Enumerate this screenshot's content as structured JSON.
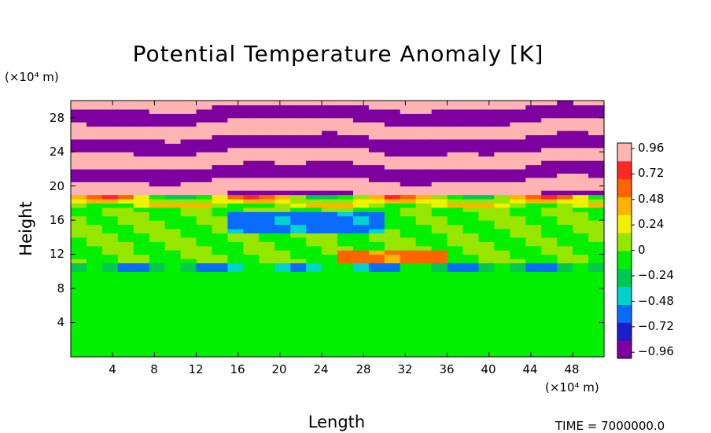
{
  "chart_data": {
    "type": "heatmap",
    "title": "Potential Temperature Anomaly [K]",
    "xlabel": "Length",
    "ylabel": "Height",
    "x_unit": "(×10⁴ m)",
    "y_unit": "(×10⁴ m)",
    "xlim": [
      0,
      51
    ],
    "ylim": [
      0,
      30
    ],
    "x_ticks": [
      "4",
      "8",
      "12",
      "16",
      "20",
      "24",
      "28",
      "32",
      "36",
      "40",
      "44",
      "48"
    ],
    "y_ticks": [
      "4",
      "8",
      "12",
      "16",
      "20",
      "24",
      "28"
    ],
    "colorbar": {
      "range": [
        -1.0,
        1.0
      ],
      "labels": [
        "0.96",
        "0.72",
        "0.48",
        "0.24",
        "0",
        "−0.24",
        "−0.48",
        "−0.72",
        "−0.96"
      ],
      "colors": [
        "#7d00a0",
        "#1e1ec8",
        "#0a6cff",
        "#00d2d2",
        "#00c850",
        "#00f000",
        "#96e600",
        "#f0f000",
        "#ffb400",
        "#ff6400",
        "#ff2828",
        "#ffb4b4"
      ]
    },
    "regions": [
      {
        "y_range": [
          0,
          9.8
        ],
        "value": -0.05
      },
      {
        "y_range": [
          9.8,
          11.0
        ],
        "value": -0.35
      },
      {
        "y_range": [
          11.0,
          17.5
        ],
        "value": 0.05
      },
      {
        "y_range": [
          17.5,
          19.0
        ],
        "value": 0.3
      },
      {
        "y_range": [
          19.0,
          30.0
        ],
        "value": "alternating ±1.0 bands"
      }
    ],
    "annotation": "TIME = 7000000.0"
  }
}
